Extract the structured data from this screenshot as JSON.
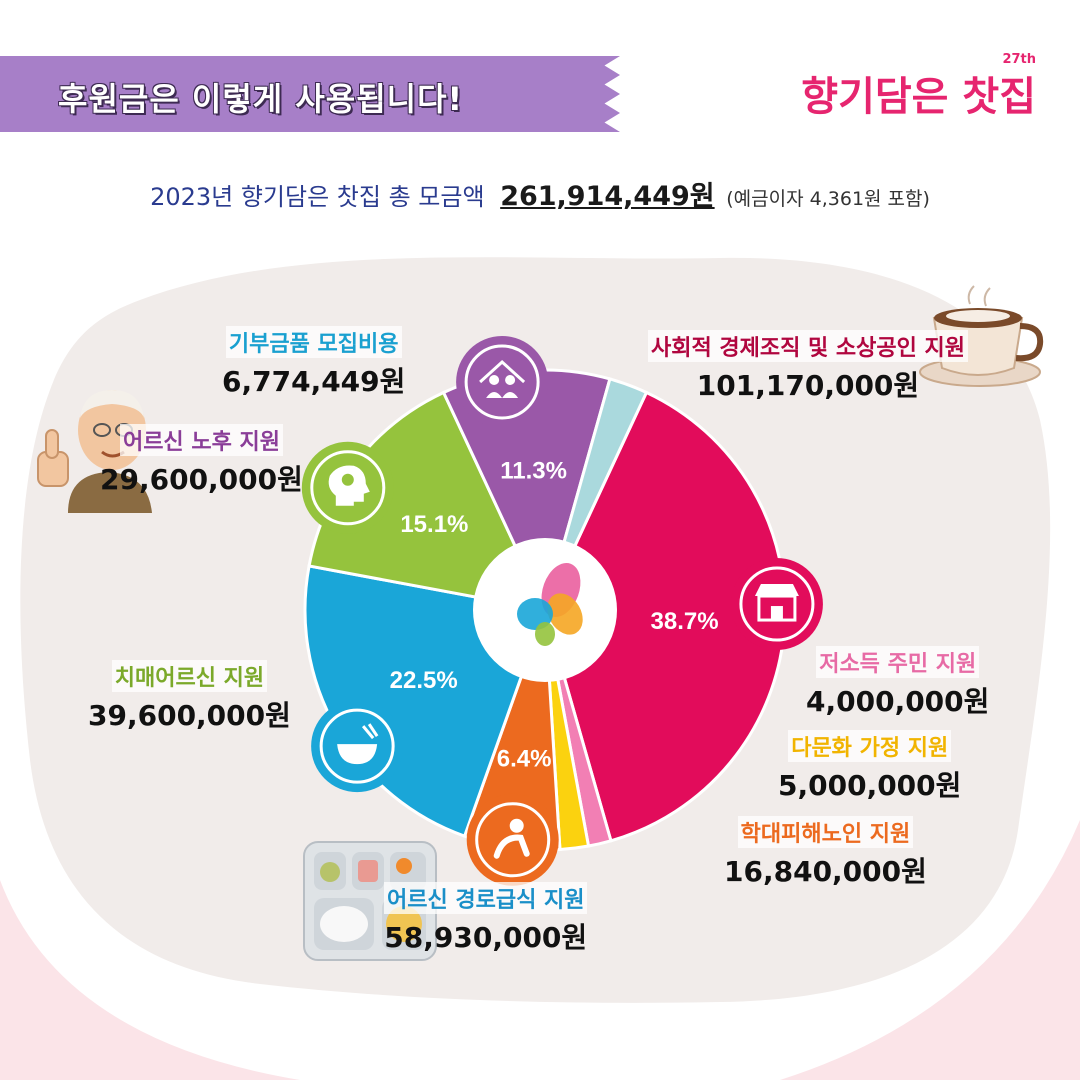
{
  "header": {
    "banner_title": "후원금은 이렇게 사용됩니다!",
    "logo_text": "향기담은 찻집",
    "logo_edition": "27th"
  },
  "summary": {
    "label": "2023년 향기담은 찻집 총 모금액",
    "total": "261,914,449원",
    "note": "(예금이자 4,361원 포함)"
  },
  "chart_data": {
    "type": "pie",
    "start_angle_deg": 25,
    "slices": [
      {
        "label": "사회적 경제조직 및 소상공인 지원",
        "amount": "101,170,000원",
        "value": 101170000,
        "percent": "38.7%",
        "color": "#e20c5b",
        "label_color": "#b0063f",
        "icon": "shop-icon"
      },
      {
        "label": "저소득 주민 지원",
        "amount": "4,000,000원",
        "value": 4000000,
        "percent": "",
        "color": "#f27fb4",
        "label_color": "#e76aa5",
        "icon": ""
      },
      {
        "label": "다문화 가정 지원",
        "amount": "5,000,000원",
        "value": 5000000,
        "percent": "",
        "color": "#fbd20f",
        "label_color": "#f1b400",
        "icon": ""
      },
      {
        "label": "학대피해노인 지원",
        "amount": "16,840,000원",
        "value": 16840000,
        "percent": "6.4%",
        "color": "#ec6a1f",
        "label_color": "#ec6a1f",
        "icon": "distressed-person-icon"
      },
      {
        "label": "어르신 경로급식 지원",
        "amount": "58,930,000원",
        "value": 58930000,
        "percent": "22.5%",
        "color": "#1aa6d8",
        "label_color": "#1a8fc8",
        "icon": "meal-bowl-icon"
      },
      {
        "label": "치매어르신 지원",
        "amount": "39,600,000원",
        "value": 39600000,
        "percent": "15.1%",
        "color": "#95c33d",
        "label_color": "#7ba92a",
        "icon": "head-bulb-icon"
      },
      {
        "label": "어르신 노후 지원",
        "amount": "29,600,000원",
        "value": 29600000,
        "percent": "11.3%",
        "color": "#9a58a8",
        "label_color": "#8a3d98",
        "icon": "elderly-home-icon"
      },
      {
        "label": "기부금품 모집비용",
        "amount": "6,774,449원",
        "value": 6774449,
        "percent": "",
        "color": "#aad9dd",
        "label_color": "#1aa0d0",
        "icon": ""
      }
    ]
  }
}
